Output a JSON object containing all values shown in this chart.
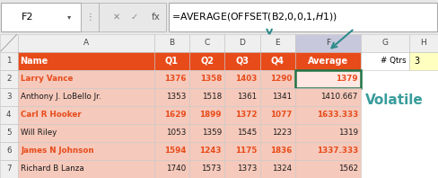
{
  "formula_bar_cell": "F2",
  "formula_bar_formula": "=AVERAGE(OFFSET(B2,0,0,1,$H$1))",
  "header_row": [
    "Name",
    "Q1",
    "Q2",
    "Q3",
    "Q4",
    "Average"
  ],
  "data_rows": [
    [
      "Larry Vance",
      "1376",
      "1358",
      "1403",
      "1290",
      "1379"
    ],
    [
      "Anthony J. LoBello Jr.",
      "1353",
      "1518",
      "1361",
      "1341",
      "1410.667"
    ],
    [
      "Carl R Hooker",
      "1629",
      "1899",
      "1372",
      "1077",
      "1633.333"
    ],
    [
      "Will Riley",
      "1053",
      "1359",
      "1545",
      "1223",
      "1319"
    ],
    [
      "James N Johnson",
      "1594",
      "1243",
      "1175",
      "1836",
      "1337.333"
    ],
    [
      "Richard B Lanza",
      "1740",
      "1573",
      "1373",
      "1324",
      "1562"
    ]
  ],
  "orange_text_rows": [
    0,
    2,
    4
  ],
  "g1_label": "# Qtrs",
  "h1_value": "3",
  "volatile_text": "Volatile",
  "volatile_color": "#3A9C9C",
  "header_bg": "#E84B1A",
  "header_fg": "#FFFFFF",
  "row_bg": "#F5C9BB",
  "selected_cell_bg": "#FFE8E4",
  "selected_cell_border": "#217346",
  "h1_bg": "#FFFFC0",
  "grid_color": "#C8C8C8",
  "col_header_bg": "#EFEFEF",
  "col_F_header_bg": "#C8C8DD",
  "arrow_color": "#2E8B8B",
  "row_num_bg": "#EFEFEF",
  "white_cell_bg": "#FFFFFF",
  "row_num_color": "#444444",
  "col_letter_color": "#444444"
}
